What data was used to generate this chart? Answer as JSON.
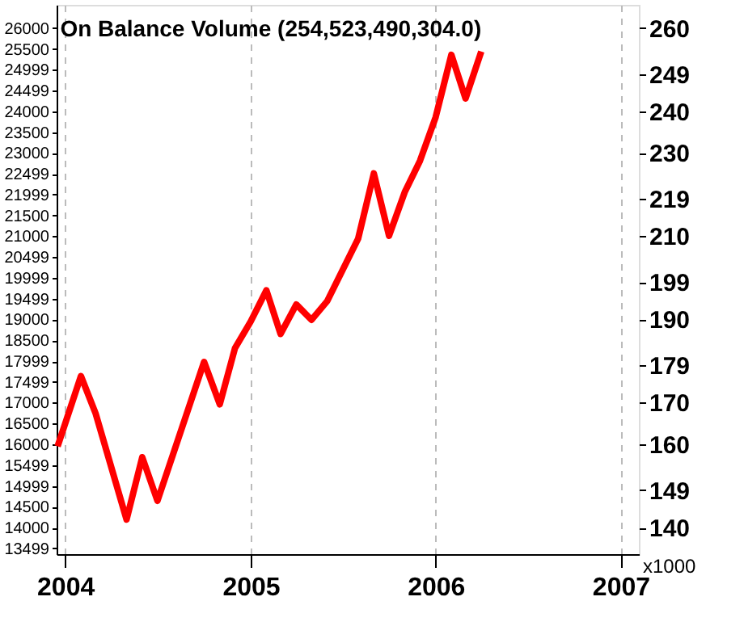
{
  "chart_data": {
    "type": "line",
    "title": "On Balance Volume (254,523,490,304.0)",
    "y2label": "x1000",
    "x": [
      "2003-12-17",
      "2004-02-01",
      "2004-03-01",
      "2004-05-01",
      "2004-06-01",
      "2004-07-01",
      "2004-10-01",
      "2004-11-01",
      "2004-12-01",
      "2005-01-01",
      "2005-02-01",
      "2005-03-01",
      "2005-04-01",
      "2005-05-01",
      "2005-06-01",
      "2005-08-01",
      "2005-09-01",
      "2005-10-01",
      "2005-11-01",
      "2005-12-01",
      "2006-01-01",
      "2006-02-01",
      "2006-03-01",
      "2006-04-01"
    ],
    "series": [
      {
        "axis": "y2",
        "color": "#ff0000",
        "values": [
          159.5,
          176.4,
          167.4,
          141.9,
          156.9,
          146.4,
          179.8,
          169.6,
          183.1,
          189.5,
          197.0,
          186.5,
          193.6,
          189.9,
          194.4,
          209.4,
          225.1,
          210.1,
          220.6,
          228.1,
          238.6,
          253.6,
          243.1,
          254.4
        ]
      }
    ],
    "xlim": [
      "2003-12-15",
      "2007-02-06"
    ],
    "xticks": [
      "2004",
      "2005",
      "2006",
      "2007"
    ],
    "ylim": [
      13360,
      26560
    ],
    "yticks": [
      13499,
      14000,
      14500,
      14999,
      15499,
      16000,
      16500,
      17000,
      17499,
      17999,
      18500,
      19000,
      19499,
      19999,
      20499,
      21000,
      21500,
      21999,
      22499,
      23000,
      23500,
      24000,
      24499,
      24999,
      25500,
      26000
    ],
    "y2lim": [
      133.6,
      265.6
    ],
    "y2ticks": [
      140,
      149,
      160,
      170,
      179,
      190,
      199,
      210,
      219,
      230,
      240,
      249,
      260
    ],
    "grid": "x",
    "line_style": "solid",
    "marker": "none"
  }
}
